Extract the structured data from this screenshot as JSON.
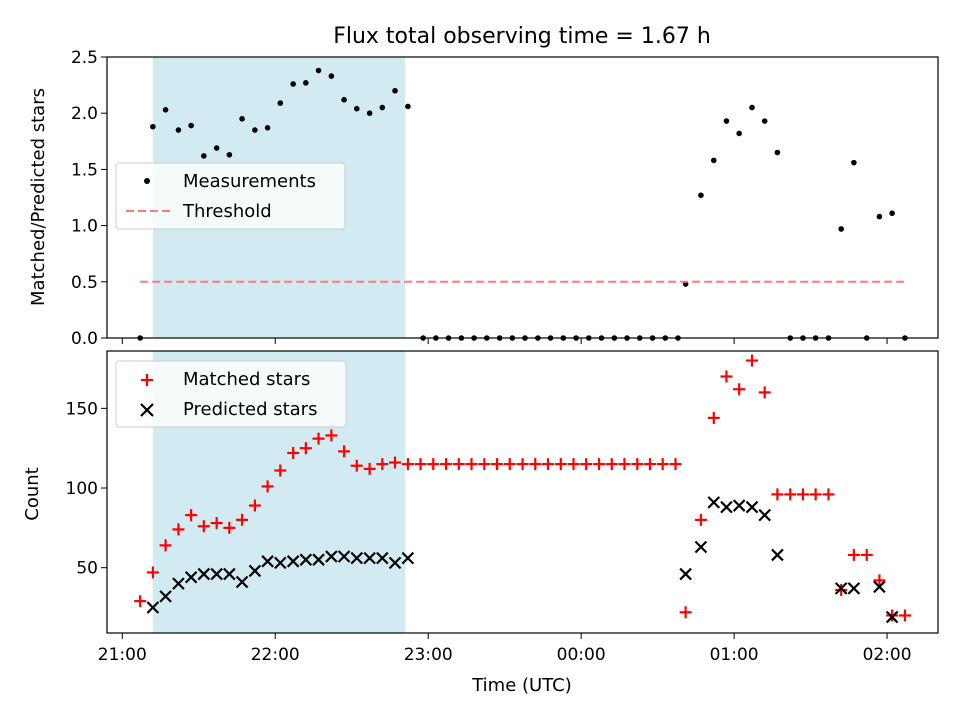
{
  "chart_data": [
    {
      "type": "scatter",
      "title": "Flux total observing time = 1.67 h",
      "xlabel": "",
      "ylabel": "Matched/Predicted stars",
      "xlim": [
        -0.1,
        5.333
      ],
      "ylim": [
        0,
        2.5
      ],
      "yticks": [
        "0.0",
        "0.5",
        "1.0",
        "1.5",
        "2.0",
        "2.5"
      ],
      "x_tick_positions_h": [
        0,
        1,
        2,
        3,
        4,
        5
      ],
      "legend_position": "center-left",
      "shaded_span": [
        0.2,
        1.85
      ],
      "shade_color": "#add8e6",
      "series": [
        {
          "name": "Measurements",
          "marker": "dot",
          "color": "#000000",
          "points": [
            [
              0.117,
              0.0
            ],
            [
              0.2,
              1.88
            ],
            [
              0.283,
              2.03
            ],
            [
              0.367,
              1.85
            ],
            [
              0.45,
              1.89
            ],
            [
              0.533,
              1.62
            ],
            [
              0.617,
              1.69
            ],
            [
              0.7,
              1.63
            ],
            [
              0.783,
              1.95
            ],
            [
              0.867,
              1.85
            ],
            [
              0.95,
              1.87
            ],
            [
              1.033,
              2.09
            ],
            [
              1.117,
              2.26
            ],
            [
              1.2,
              2.27
            ],
            [
              1.283,
              2.38
            ],
            [
              1.367,
              2.33
            ],
            [
              1.45,
              2.12
            ],
            [
              1.533,
              2.04
            ],
            [
              1.617,
              2.0
            ],
            [
              1.7,
              2.05
            ],
            [
              1.783,
              2.2
            ],
            [
              1.867,
              2.06
            ],
            [
              1.967,
              0.0
            ],
            [
              2.05,
              0.0
            ],
            [
              2.133,
              0.0
            ],
            [
              2.217,
              0.0
            ],
            [
              2.3,
              0.0
            ],
            [
              2.383,
              0.0
            ],
            [
              2.467,
              0.0
            ],
            [
              2.55,
              0.0
            ],
            [
              2.633,
              0.0
            ],
            [
              2.717,
              0.0
            ],
            [
              2.8,
              0.0
            ],
            [
              2.883,
              0.0
            ],
            [
              2.967,
              0.0
            ],
            [
              3.05,
              0.0
            ],
            [
              3.133,
              0.0
            ],
            [
              3.217,
              0.0
            ],
            [
              3.3,
              0.0
            ],
            [
              3.383,
              0.0
            ],
            [
              3.467,
              0.0
            ],
            [
              3.55,
              0.0
            ],
            [
              3.633,
              0.0
            ],
            [
              3.683,
              0.48
            ],
            [
              3.783,
              1.27
            ],
            [
              3.867,
              1.58
            ],
            [
              3.95,
              1.93
            ],
            [
              4.033,
              1.82
            ],
            [
              4.117,
              2.05
            ],
            [
              4.2,
              1.93
            ],
            [
              4.283,
              1.65
            ],
            [
              4.367,
              0.0
            ],
            [
              4.45,
              0.0
            ],
            [
              4.533,
              0.0
            ],
            [
              4.617,
              0.0
            ],
            [
              4.7,
              0.97
            ],
            [
              4.783,
              1.56
            ],
            [
              4.867,
              0.0
            ],
            [
              4.95,
              1.08
            ],
            [
              5.033,
              1.11
            ],
            [
              5.117,
              0.0
            ]
          ]
        },
        {
          "name": "Threshold",
          "marker": "dashed-line",
          "color": "#ff7777",
          "points": [
            [
              0.117,
              0.5
            ],
            [
              5.117,
              0.5
            ]
          ]
        }
      ]
    },
    {
      "type": "scatter",
      "title": "",
      "xlabel": "Time (UTC)",
      "ylabel": "Count",
      "xlim": [
        -0.1,
        5.333
      ],
      "ylim": [
        9,
        186
      ],
      "yticks": [
        "50",
        "100",
        "150"
      ],
      "ytick_values": [
        50,
        100,
        150
      ],
      "xticks": [
        "21:00",
        "22:00",
        "23:00",
        "00:00",
        "01:00",
        "02:00"
      ],
      "x_tick_positions_h": [
        0,
        1,
        2,
        3,
        4,
        5
      ],
      "legend_position": "top-left",
      "shaded_span": [
        0.2,
        1.85
      ],
      "shade_color": "#add8e6",
      "series": [
        {
          "name": "Matched stars",
          "marker": "plus",
          "color": "#ff0000",
          "points": [
            [
              0.117,
              29
            ],
            [
              0.2,
              47
            ],
            [
              0.283,
              64
            ],
            [
              0.367,
              74
            ],
            [
              0.45,
              83
            ],
            [
              0.533,
              76
            ],
            [
              0.617,
              78
            ],
            [
              0.7,
              75
            ],
            [
              0.783,
              80
            ],
            [
              0.867,
              89
            ],
            [
              0.95,
              101
            ],
            [
              1.033,
              111
            ],
            [
              1.117,
              122
            ],
            [
              1.2,
              125
            ],
            [
              1.283,
              131
            ],
            [
              1.367,
              133
            ],
            [
              1.45,
              123
            ],
            [
              1.533,
              114
            ],
            [
              1.617,
              112
            ],
            [
              1.7,
              115
            ],
            [
              1.783,
              116
            ],
            [
              1.867,
              115
            ],
            [
              1.95,
              115
            ],
            [
              2.033,
              115
            ],
            [
              2.117,
              115
            ],
            [
              2.2,
              115
            ],
            [
              2.283,
              115
            ],
            [
              2.367,
              115
            ],
            [
              2.45,
              115
            ],
            [
              2.533,
              115
            ],
            [
              2.617,
              115
            ],
            [
              2.7,
              115
            ],
            [
              2.783,
              115
            ],
            [
              2.867,
              115
            ],
            [
              2.95,
              115
            ],
            [
              3.033,
              115
            ],
            [
              3.117,
              115
            ],
            [
              3.2,
              115
            ],
            [
              3.283,
              115
            ],
            [
              3.367,
              115
            ],
            [
              3.45,
              115
            ],
            [
              3.533,
              115
            ],
            [
              3.617,
              115
            ],
            [
              3.683,
              22
            ],
            [
              3.783,
              80
            ],
            [
              3.867,
              144
            ],
            [
              3.95,
              170
            ],
            [
              4.033,
              162
            ],
            [
              4.117,
              180
            ],
            [
              4.2,
              160
            ],
            [
              4.283,
              96
            ],
            [
              4.367,
              96
            ],
            [
              4.45,
              96
            ],
            [
              4.533,
              96
            ],
            [
              4.617,
              96
            ],
            [
              4.7,
              36
            ],
            [
              4.783,
              58
            ],
            [
              4.867,
              58
            ],
            [
              4.95,
              42
            ],
            [
              5.033,
              20
            ],
            [
              5.117,
              20
            ]
          ]
        },
        {
          "name": "Predicted stars",
          "marker": "x",
          "color": "#000000",
          "points": [
            [
              0.2,
              25
            ],
            [
              0.283,
              32
            ],
            [
              0.367,
              40
            ],
            [
              0.45,
              44
            ],
            [
              0.533,
              46
            ],
            [
              0.617,
              46
            ],
            [
              0.7,
              46
            ],
            [
              0.783,
              41
            ],
            [
              0.867,
              48
            ],
            [
              0.95,
              54
            ],
            [
              1.033,
              53
            ],
            [
              1.117,
              54
            ],
            [
              1.2,
              55
            ],
            [
              1.283,
              55
            ],
            [
              1.367,
              57
            ],
            [
              1.45,
              57
            ],
            [
              1.533,
              56
            ],
            [
              1.617,
              56
            ],
            [
              1.7,
              56
            ],
            [
              1.783,
              53
            ],
            [
              1.867,
              56
            ],
            [
              3.683,
              46
            ],
            [
              3.783,
              63
            ],
            [
              3.867,
              91
            ],
            [
              3.95,
              88
            ],
            [
              4.033,
              89
            ],
            [
              4.117,
              88
            ],
            [
              4.2,
              83
            ],
            [
              4.283,
              58
            ],
            [
              4.7,
              37
            ],
            [
              4.783,
              37
            ],
            [
              4.95,
              38
            ],
            [
              5.033,
              19
            ]
          ]
        }
      ]
    }
  ]
}
